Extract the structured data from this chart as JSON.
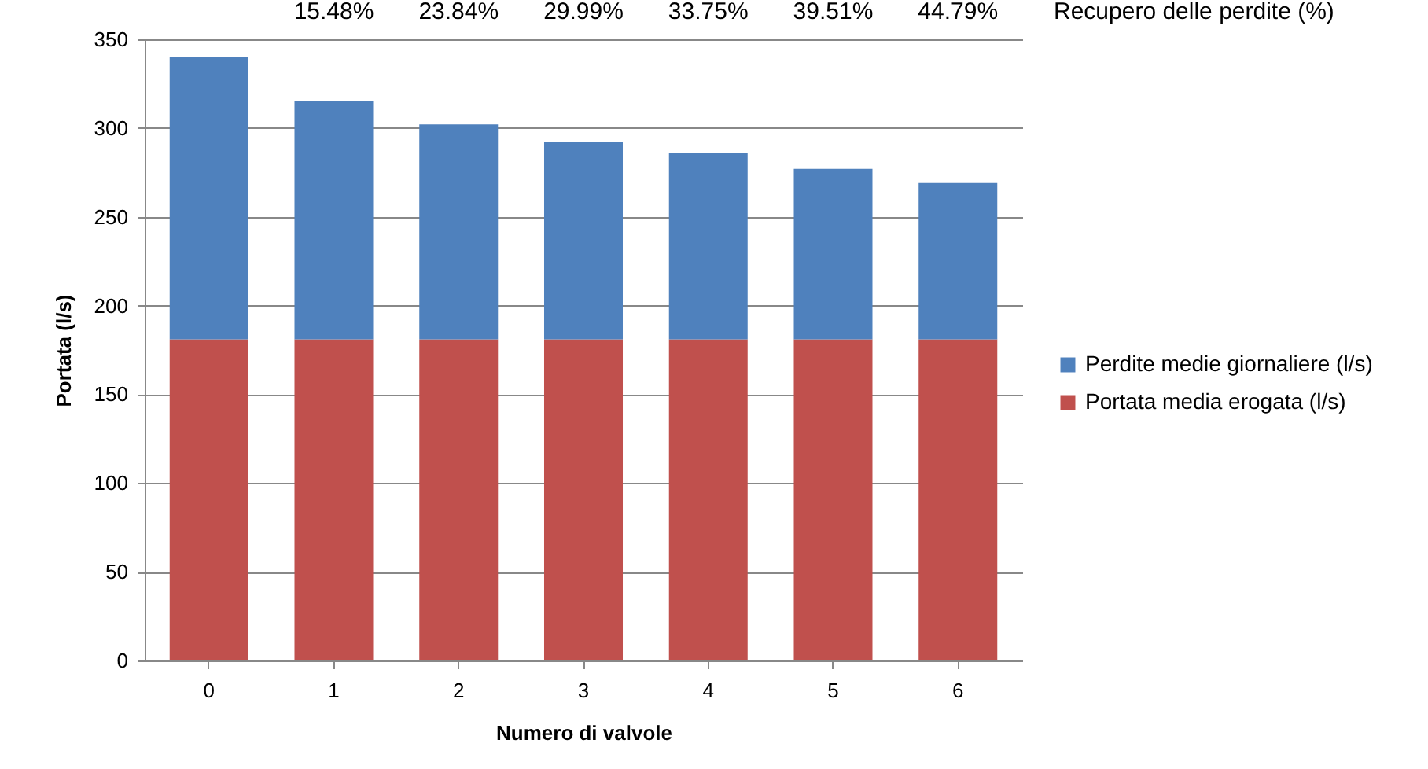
{
  "chart_data": {
    "type": "bar",
    "stacked": true,
    "xlabel": "Numero di valvole",
    "ylabel": "Portata (l/s)",
    "categories": [
      "0",
      "1",
      "2",
      "3",
      "4",
      "5",
      "6"
    ],
    "series": [
      {
        "name": "Portata media erogata (l/s)",
        "color": "#c0504d",
        "values": [
          181,
          181,
          181,
          181,
          181,
          181,
          181
        ]
      },
      {
        "name": "Perdite medie giornaliere (l/s)",
        "color": "#4f81bd",
        "values": [
          159,
          134,
          121,
          111,
          105,
          96,
          88
        ]
      }
    ],
    "ylim": [
      0,
      350
    ],
    "yticks": [
      0,
      50,
      100,
      150,
      200,
      250,
      300,
      350
    ],
    "grid": "y",
    "legend": "right",
    "annotations": [
      "15.48%",
      "23.84%",
      "29.99%",
      "33.75%",
      "39.51%",
      "44.79%",
      "Recupero delle perdite (%)"
    ]
  }
}
